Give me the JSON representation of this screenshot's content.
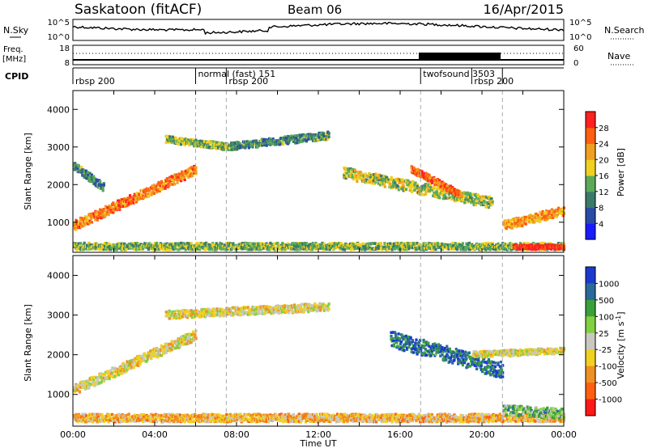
{
  "header": {
    "title": "Saskatoon (fitACF)",
    "beam": "Beam 06",
    "date": "16/Apr/2015"
  },
  "top_panels": {
    "nsky_label": "N.Sky",
    "nsky_ticks": [
      "10^5",
      "10^0"
    ],
    "nsearch_label": "N.Search",
    "nsearch_ticks": [
      "10^5",
      "10^0"
    ],
    "freq_label": "Freq.",
    "freq_unit": "[MHz]",
    "freq_ticks": [
      "18",
      "8"
    ],
    "nave_label": "Nave",
    "nave_ticks": [
      "60",
      "0"
    ],
    "cpid_label": "CPID",
    "cpid_segments": [
      {
        "label": "rbsp 200",
        "start_h": 0,
        "row": 1
      },
      {
        "label": "normal (fast) 151",
        "start_h": 6.0,
        "row": 0
      },
      {
        "label": "rbsp 200",
        "start_h": 7.5,
        "row": 1
      },
      {
        "label": "twofsound 3503",
        "start_h": 17.0,
        "row": 0
      },
      {
        "label": "rbsp 200",
        "start_h": 19.5,
        "row": 1
      },
      {
        "label": "",
        "start_h": 21.0,
        "row": 1
      }
    ]
  },
  "colorbars": {
    "power": {
      "label": "Power [dB]",
      "ticks": [
        "4",
        "8",
        "12",
        "16",
        "20",
        "24",
        "28"
      ],
      "colors": [
        "#1a1aff",
        "#2a4aa8",
        "#3a7a6a",
        "#5aaa5a",
        "#f0d020",
        "#f0a020",
        "#ff6010",
        "#ff2020"
      ]
    },
    "velocity": {
      "label": "Velocity [m s",
      "label_sup": "-1",
      "label_end": "]",
      "ticks": [
        "1000",
        "500",
        "100",
        "25",
        "-25",
        "-100",
        "-500",
        "-1000"
      ],
      "colors": [
        "#1a3acf",
        "#2a6a9a",
        "#3aa03a",
        "#80d040",
        "#c8c8c0",
        "#f0d020",
        "#f09020",
        "#ff6010",
        "#ff1818"
      ]
    }
  },
  "chart_data": [
    {
      "type": "heatmap",
      "name": "power",
      "ylabel": "Slant Range [km]",
      "xlabel": "",
      "ylim": [
        200,
        4500
      ],
      "xlim_hours": [
        0,
        24
      ],
      "yticks": [
        "1000",
        "2000",
        "3000",
        "4000"
      ],
      "bands": [
        {
          "from_h": 0.0,
          "to_h": 6.0,
          "center_start_km": 900,
          "center_end_km": 2400,
          "width_km": 260,
          "level": 0.75
        },
        {
          "from_h": 0.0,
          "to_h": 1.5,
          "center_start_km": 2500,
          "center_end_km": 1900,
          "width_km": 220,
          "level": 0.35
        },
        {
          "from_h": 4.5,
          "to_h": 7.5,
          "center_start_km": 3200,
          "center_end_km": 3000,
          "width_km": 180,
          "level": 0.45
        },
        {
          "from_h": 7.5,
          "to_h": 12.5,
          "center_start_km": 3000,
          "center_end_km": 3300,
          "width_km": 200,
          "level": 0.35
        },
        {
          "from_h": 13.2,
          "to_h": 20.5,
          "center_start_km": 2300,
          "center_end_km": 1500,
          "width_km": 300,
          "level": 0.5
        },
        {
          "from_h": 16.5,
          "to_h": 19.0,
          "center_start_km": 2400,
          "center_end_km": 1700,
          "width_km": 180,
          "level": 0.8
        },
        {
          "from_h": 21.0,
          "to_h": 24.0,
          "center_start_km": 900,
          "center_end_km": 1300,
          "width_km": 250,
          "level": 0.7
        },
        {
          "from_h": 0.0,
          "to_h": 24.0,
          "center_start_km": 350,
          "center_end_km": 350,
          "width_km": 180,
          "level": 0.45
        },
        {
          "from_h": 21.5,
          "to_h": 24.0,
          "center_start_km": 330,
          "center_end_km": 330,
          "width_km": 120,
          "level": 0.95
        }
      ]
    },
    {
      "type": "heatmap",
      "name": "velocity",
      "ylabel": "Slant Range [km]",
      "xlabel": "Time UT",
      "ylim": [
        200,
        4500
      ],
      "xlim_hours": [
        0,
        24
      ],
      "yticks": [
        "1000",
        "2000",
        "3000",
        "4000"
      ],
      "xticks": [
        "00:00",
        "04:00",
        "08:00",
        "12:00",
        "16:00",
        "20:00",
        "00:00"
      ],
      "bands": [
        {
          "from_h": 0.0,
          "to_h": 6.0,
          "center_start_km": 1100,
          "center_end_km": 2500,
          "width_km": 250,
          "level": 0.44
        },
        {
          "from_h": 4.5,
          "to_h": 12.5,
          "center_start_km": 3000,
          "center_end_km": 3200,
          "width_km": 200,
          "level": 0.45
        },
        {
          "from_h": 15.5,
          "to_h": 21.0,
          "center_start_km": 2400,
          "center_end_km": 1600,
          "width_km": 420,
          "level": 0.84
        },
        {
          "from_h": 19.5,
          "to_h": 24.0,
          "center_start_km": 2000,
          "center_end_km": 2100,
          "width_km": 150,
          "level": 0.45
        },
        {
          "from_h": 0.0,
          "to_h": 24.0,
          "center_start_km": 400,
          "center_end_km": 400,
          "width_km": 200,
          "level": 0.35
        },
        {
          "from_h": 21.0,
          "to_h": 24.0,
          "center_start_km": 600,
          "center_end_km": 500,
          "width_km": 250,
          "level": 0.66
        }
      ]
    }
  ]
}
